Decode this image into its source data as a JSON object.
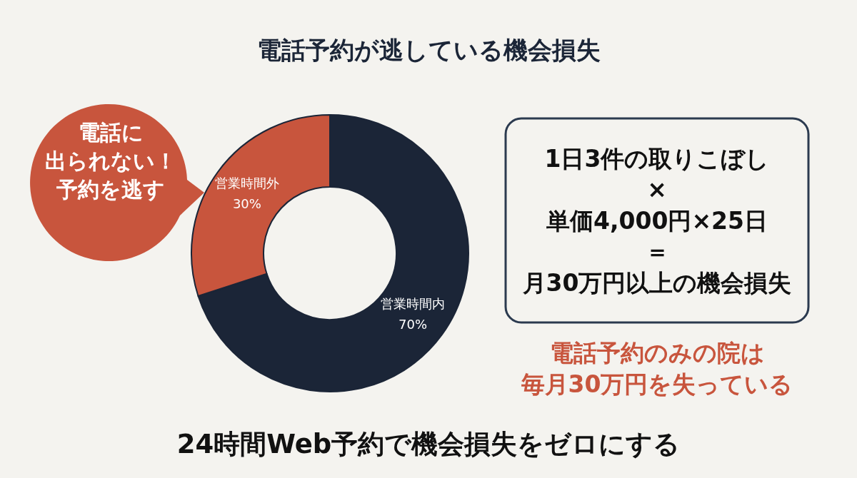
{
  "chart_data": {
    "type": "donut",
    "title": "電話予約が逃している機会損失",
    "categories": [
      "営業時間内",
      "営業時間外"
    ],
    "values": [
      70,
      30
    ],
    "colors": [
      "#1b2537",
      "#c8553d"
    ],
    "value_labels": [
      "70%",
      "30%"
    ],
    "annotations": [
      "電話に",
      "出られない！",
      "予約を逃す",
      "1日3件の取りこぼし",
      "×",
      "単価4,000円×25日",
      "＝",
      "月30万円以上の機会損失",
      "電話予約のみの院は",
      "毎月30万円を失っている",
      "24時間Web予約で機会損失をゼロにする"
    ]
  }
}
